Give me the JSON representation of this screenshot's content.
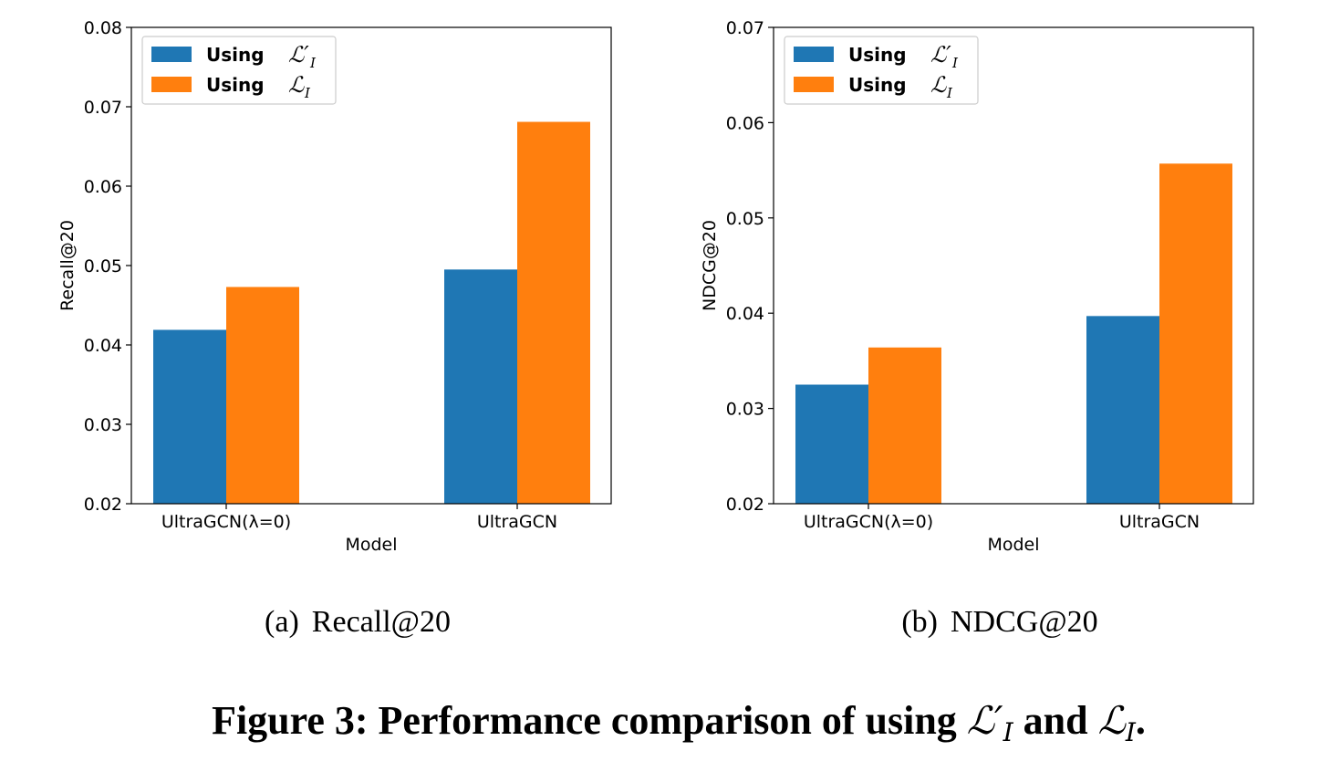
{
  "colors": {
    "series1": "#1f77b4",
    "series2": "#ff7f0e",
    "legend_border": "#cccccc"
  },
  "legend": {
    "series1": {
      "word": "Using",
      "symbol": "ℒ′",
      "subscript": "I"
    },
    "series2": {
      "word": "Using",
      "symbol": "ℒ",
      "subscript": "I"
    }
  },
  "chart_data": [
    {
      "type": "bar",
      "categories": [
        "UltraGCN(λ=0)",
        "UltraGCN"
      ],
      "series": [
        {
          "name": "Using ℒ′I",
          "values": [
            0.0419,
            0.0495
          ]
        },
        {
          "name": "Using ℒI",
          "values": [
            0.0473,
            0.0681
          ]
        }
      ],
      "xlabel": "Model",
      "ylabel": "Recall@20",
      "ylim": [
        0.02,
        0.08
      ],
      "yticks": [
        "0.02",
        "0.03",
        "0.04",
        "0.05",
        "0.06",
        "0.07",
        "0.08"
      ],
      "legend_position": "top-left",
      "grid": false
    },
    {
      "type": "bar",
      "categories": [
        "UltraGCN(λ=0)",
        "UltraGCN"
      ],
      "series": [
        {
          "name": "Using ℒ′I",
          "values": [
            0.0325,
            0.0397
          ]
        },
        {
          "name": "Using ℒI",
          "values": [
            0.0364,
            0.0557
          ]
        }
      ],
      "xlabel": "Model",
      "ylabel": "NDCG@20",
      "ylim": [
        0.02,
        0.07
      ],
      "yticks": [
        "0.02",
        "0.03",
        "0.04",
        "0.05",
        "0.06",
        "0.07"
      ],
      "legend_position": "top-left",
      "grid": false
    }
  ],
  "captions": {
    "sub_a_label": "(a)",
    "sub_a_text": "Recall@20",
    "sub_b_label": "(b)",
    "sub_b_text": "NDCG@20",
    "figure_prefix": "Figure 3: Performance comparison of using",
    "figure_sym1": "ℒ′",
    "figure_sub1": "I",
    "figure_mid": "and",
    "figure_sym2": "ℒ",
    "figure_sub2": "I",
    "figure_end": "."
  }
}
